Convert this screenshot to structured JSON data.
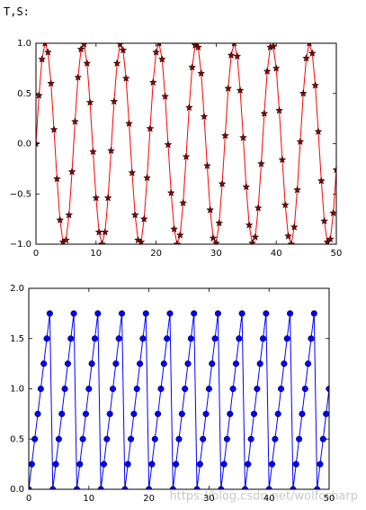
{
  "header": {
    "text": "T,S:"
  },
  "watermark": "https://blog.csdn.net/wolfcsharp",
  "chart_data": [
    {
      "type": "line",
      "marker": "star",
      "color": "#ff0000",
      "marker_color": "#8b0000",
      "x": [
        0,
        0.5,
        1,
        1.5,
        2,
        2.5,
        3,
        3.5,
        4,
        4.5,
        5,
        5.5,
        6,
        6.5,
        7,
        7.5,
        8,
        8.5,
        9,
        9.5,
        10,
        10.5,
        11,
        11.5,
        12,
        12.5,
        13,
        13.5,
        14,
        14.5,
        15,
        15.5,
        16,
        16.5,
        17,
        17.5,
        18,
        18.5,
        19,
        19.5,
        20,
        20.5,
        21,
        21.5,
        22,
        22.5,
        23,
        23.5,
        24,
        24.5,
        25,
        25.5,
        26,
        26.5,
        27,
        27.5,
        28,
        28.5,
        29,
        29.5,
        30,
        30.5,
        31,
        31.5,
        32,
        32.5,
        33,
        33.5,
        34,
        34.5,
        35,
        35.5,
        36,
        36.5,
        37,
        37.5,
        38,
        38.5,
        39,
        39.5,
        40,
        40.5,
        41,
        41.5,
        42,
        42.5,
        43,
        43.5,
        44,
        44.5,
        45,
        45.5,
        46,
        46.5,
        47,
        47.5,
        48,
        48.5,
        49,
        49.5,
        50
      ],
      "values": [
        0,
        0.48,
        0.84,
        1,
        0.91,
        0.6,
        0.14,
        -0.35,
        -0.76,
        -0.98,
        -0.96,
        -0.71,
        -0.28,
        0.22,
        0.66,
        0.94,
        0.99,
        0.8,
        0.41,
        -0.08,
        -0.54,
        -0.88,
        -1,
        -0.88,
        -0.54,
        -0.07,
        0.42,
        0.8,
        0.99,
        0.93,
        0.65,
        0.2,
        -0.29,
        -0.71,
        -0.96,
        -0.98,
        -0.75,
        -0.34,
        0.15,
        0.61,
        0.91,
        1,
        0.84,
        0.47,
        -0.01,
        -0.49,
        -0.85,
        -1,
        -0.91,
        -0.59,
        -0.13,
        0.36,
        0.76,
        0.98,
        0.96,
        0.7,
        0.27,
        -0.22,
        -0.66,
        -0.94,
        -0.99,
        -0.79,
        -0.4,
        0.08,
        0.55,
        0.88,
        1,
        0.87,
        0.53,
        0.06,
        -0.43,
        -0.81,
        -0.99,
        -0.93,
        -0.64,
        -0.2,
        0.3,
        0.72,
        0.96,
        0.97,
        0.75,
        0.33,
        -0.16,
        -0.61,
        -0.92,
        -1,
        -0.83,
        -0.46,
        0.02,
        0.5,
        0.85,
        1,
        0.9,
        0.58,
        0.12,
        -0.37,
        -0.77,
        -0.98,
        -0.95,
        -0.69,
        -0.26
      ],
      "xlim": [
        0,
        50
      ],
      "xticks": [
        0,
        10,
        20,
        30,
        40,
        50
      ],
      "ylim": [
        -1,
        1
      ],
      "yticks": [
        {
          "value": -1,
          "label": "−1.0"
        },
        {
          "value": -0.5,
          "label": "−0.5"
        },
        {
          "value": 0,
          "label": "0.0"
        },
        {
          "value": 0.5,
          "label": "0.5"
        },
        {
          "value": 1,
          "label": "1.0"
        }
      ]
    },
    {
      "type": "line",
      "marker": "circle",
      "color": "#0000ff",
      "marker_color": "#0000ff",
      "x": [
        0,
        0.5,
        1,
        1.5,
        2,
        2.5,
        3,
        3.5,
        4,
        4.5,
        5,
        5.5,
        6,
        6.5,
        7,
        7.5,
        8,
        8.5,
        9,
        9.5,
        10,
        10.5,
        11,
        11.5,
        12,
        12.5,
        13,
        13.5,
        14,
        14.5,
        15,
        15.5,
        16,
        16.5,
        17,
        17.5,
        18,
        18.5,
        19,
        19.5,
        20,
        20.5,
        21,
        21.5,
        22,
        22.5,
        23,
        23.5,
        24,
        24.5,
        25,
        25.5,
        26,
        26.5,
        27,
        27.5,
        28,
        28.5,
        29,
        29.5,
        30,
        30.5,
        31,
        31.5,
        32,
        32.5,
        33,
        33.5,
        34,
        34.5,
        35,
        35.5,
        36,
        36.5,
        37,
        37.5,
        38,
        38.5,
        39,
        39.5,
        40,
        40.5,
        41,
        41.5,
        42,
        42.5,
        43,
        43.5,
        44,
        44.5,
        45,
        45.5,
        46,
        46.5,
        47,
        47.5,
        48,
        48.5,
        49,
        49.5,
        50
      ],
      "values": [
        0,
        0.25,
        0.5,
        0.75,
        1,
        1.25,
        1.5,
        1.75,
        0,
        0.25,
        0.5,
        0.75,
        1,
        1.25,
        1.5,
        1.75,
        0,
        0.25,
        0.5,
        0.75,
        1,
        1.25,
        1.5,
        1.75,
        0,
        0.25,
        0.5,
        0.75,
        1,
        1.25,
        1.5,
        1.75,
        0,
        0.25,
        0.5,
        0.75,
        1,
        1.25,
        1.5,
        1.75,
        0,
        0.25,
        0.5,
        0.75,
        1,
        1.25,
        1.5,
        1.75,
        0,
        0.25,
        0.5,
        0.75,
        1,
        1.25,
        1.5,
        1.75,
        0,
        0.25,
        0.5,
        0.75,
        1,
        1.25,
        1.5,
        1.75,
        0,
        0.25,
        0.5,
        0.75,
        1,
        1.25,
        1.5,
        1.75,
        0,
        0.25,
        0.5,
        0.75,
        1,
        1.25,
        1.5,
        1.75,
        0,
        0.25,
        0.5,
        0.75,
        1,
        1.25,
        1.5,
        1.75,
        0,
        0.25,
        0.5,
        0.75,
        1,
        1.25,
        1.5,
        1.75,
        0,
        0.25,
        0.5,
        0.75,
        1
      ],
      "xlim": [
        0,
        50
      ],
      "xticks": [
        0,
        10,
        20,
        30,
        40,
        50
      ],
      "ylim": [
        0,
        2
      ],
      "yticks": [
        {
          "value": 0,
          "label": "0.0"
        },
        {
          "value": 0.5,
          "label": "0.5"
        },
        {
          "value": 1,
          "label": "1.0"
        },
        {
          "value": 1.5,
          "label": "1.5"
        },
        {
          "value": 2,
          "label": "2.0"
        }
      ]
    }
  ]
}
